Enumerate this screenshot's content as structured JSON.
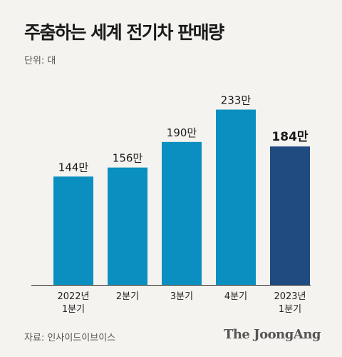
{
  "header": {
    "title": "주춤하는 세계 전기차 판매량",
    "unit": "단위: 대"
  },
  "footer": {
    "source": "자료: 인사이드이브이스",
    "brand": "The JoongAng"
  },
  "colors": {
    "bar": "#0b8fc0",
    "highlight": "#1f4b80",
    "background": "#f4f3ef",
    "axis": "#333333"
  },
  "chart_data": {
    "type": "bar",
    "title": "주춤하는 세계 전기차 판매량",
    "ylabel": "단위: 대",
    "xlabel": "",
    "categories": [
      [
        "2022년",
        "1분기"
      ],
      [
        "2분기"
      ],
      [
        "3분기"
      ],
      [
        "4분기"
      ],
      [
        "2023년",
        "1분기"
      ]
    ],
    "values": [
      1440000,
      1560000,
      1900000,
      2330000,
      1840000
    ],
    "data_labels": [
      "144만",
      "156만",
      "190만",
      "233만",
      "184만"
    ],
    "highlight_index": 4,
    "ylim": [
      0,
      2800000
    ],
    "grid": false,
    "legend": "none"
  }
}
